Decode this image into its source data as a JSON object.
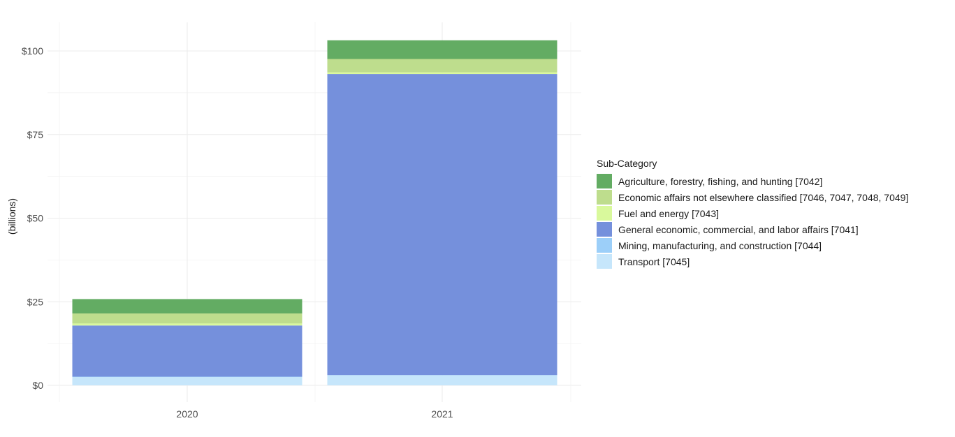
{
  "chart_data": {
    "type": "bar",
    "stacked": true,
    "categories": [
      "2020",
      "2021"
    ],
    "ylabel": "(billions)",
    "xlabel": "",
    "ylim": [
      -3,
      108
    ],
    "y_ticks": [
      0,
      25,
      50,
      75,
      100
    ],
    "y_tick_labels": [
      "$0",
      "$25",
      "$50",
      "$75",
      "$100"
    ],
    "grid": true,
    "legend": {
      "title": "Sub-Category",
      "placement": "right",
      "order": [
        "Agriculture, forestry, fishing, and hunting [7042]",
        "Economic affairs not elsewhere classified [7046, 7047, 7048, 7049]",
        "Fuel and energy [7043]",
        "General economic, commercial, and labor affairs [7041]",
        "Mining, manufacturing, and construction [7044]",
        "Transport [7045]"
      ]
    },
    "series": [
      {
        "name": "Transport [7045]",
        "color": "#c6e6fb",
        "values": [
          2.5,
          3.0
        ]
      },
      {
        "name": "Mining, manufacturing, and construction [7044]",
        "color": "#9ccff9",
        "values": [
          0.1,
          0.1
        ]
      },
      {
        "name": "General economic, commercial, and labor affairs [7041]",
        "color": "#7590dc",
        "values": [
          15.3,
          90.0
        ]
      },
      {
        "name": "Fuel and energy [7043]",
        "color": "#d9f99c",
        "values": [
          0.6,
          0.5
        ]
      },
      {
        "name": "Economic affairs not elsewhere classified [7046, 7047, 7048, 7049]",
        "color": "#bedd8d",
        "values": [
          3.0,
          4.0
        ]
      },
      {
        "name": "Agriculture, forestry, fishing, and hunting [7042]",
        "color": "#63ac63",
        "values": [
          4.3,
          5.6
        ]
      }
    ]
  }
}
